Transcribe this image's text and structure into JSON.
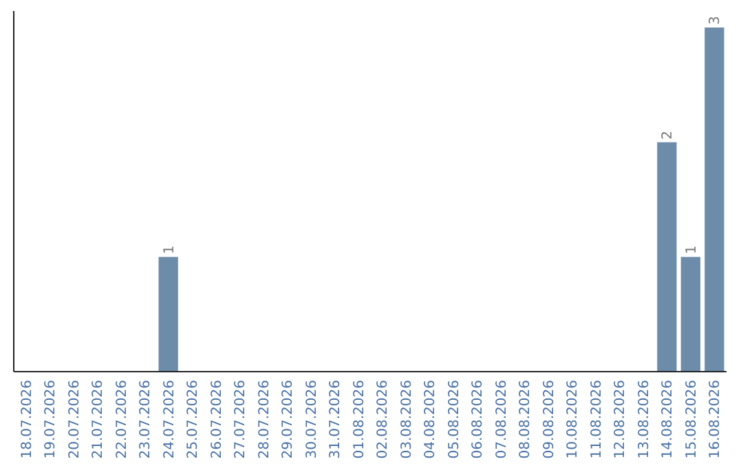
{
  "chart_data": {
    "type": "bar",
    "categories": [
      "18.07.2026",
      "19.07.2026",
      "20.07.2026",
      "21.07.2026",
      "22.07.2026",
      "23.07.2026",
      "24.07.2026",
      "25.07.2026",
      "26.07.2026",
      "27.07.2026",
      "28.07.2026",
      "29.07.2026",
      "30.07.2026",
      "31.07.2026",
      "01.08.2026",
      "02.08.2026",
      "03.08.2026",
      "04.08.2026",
      "05.08.2026",
      "06.08.2026",
      "07.08.2026",
      "08.08.2026",
      "09.08.2026",
      "10.08.2026",
      "11.08.2026",
      "12.08.2026",
      "13.08.2026",
      "14.08.2026",
      "15.08.2026",
      "16.08.2026"
    ],
    "values": [
      0,
      0,
      0,
      0,
      0,
      0,
      1,
      0,
      0,
      0,
      0,
      0,
      0,
      0,
      0,
      0,
      0,
      0,
      0,
      0,
      0,
      0,
      0,
      0,
      0,
      0,
      0,
      2,
      1,
      3
    ],
    "value_labels": [
      null,
      null,
      null,
      null,
      null,
      null,
      "1",
      null,
      null,
      null,
      null,
      null,
      null,
      null,
      null,
      null,
      null,
      null,
      null,
      null,
      null,
      null,
      null,
      null,
      null,
      null,
      null,
      "2",
      "1",
      "3"
    ],
    "color": "#6d8caa",
    "tick_labels": "x"
  }
}
